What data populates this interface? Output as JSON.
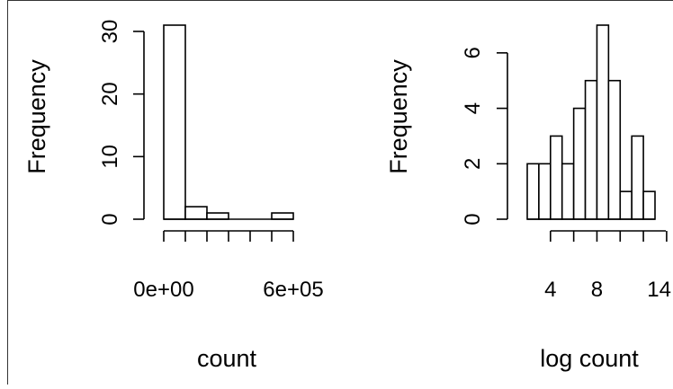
{
  "chart_data": [
    {
      "type": "bar",
      "subtype": "histogram",
      "title": "",
      "xlabel": "count",
      "ylabel": "Frequency",
      "bins": [
        {
          "x0": 0,
          "x1": 100000,
          "count": 31
        },
        {
          "x0": 100000,
          "x1": 200000,
          "count": 2
        },
        {
          "x0": 200000,
          "x1": 300000,
          "count": 1
        },
        {
          "x0": 300000,
          "x1": 400000,
          "count": 0
        },
        {
          "x0": 400000,
          "x1": 500000,
          "count": 0
        },
        {
          "x0": 500000,
          "x1": 600000,
          "count": 1
        }
      ],
      "xlim": [
        0,
        600000
      ],
      "ylim": [
        0,
        31
      ],
      "x_ticks": [
        0,
        100000,
        200000,
        300000,
        400000,
        500000,
        600000
      ],
      "x_tick_labels": [
        "0e+00",
        "",
        "",
        "",
        "",
        "",
        "6e+05"
      ],
      "y_ticks": [
        0,
        10,
        20,
        30
      ],
      "y_tick_labels": [
        "0",
        "10",
        "20",
        "30"
      ],
      "grid": false,
      "legend": "none"
    },
    {
      "type": "bar",
      "subtype": "histogram",
      "title": "",
      "xlabel": "log count",
      "ylabel": "Frequency",
      "bins": [
        {
          "x0": 2,
          "x1": 3,
          "count": 2
        },
        {
          "x0": 3,
          "x1": 4,
          "count": 2
        },
        {
          "x0": 4,
          "x1": 5,
          "count": 3
        },
        {
          "x0": 5,
          "x1": 6,
          "count": 2
        },
        {
          "x0": 6,
          "x1": 7,
          "count": 4
        },
        {
          "x0": 7,
          "x1": 8,
          "count": 5
        },
        {
          "x0": 8,
          "x1": 9,
          "count": 7
        },
        {
          "x0": 9,
          "x1": 10,
          "count": 5
        },
        {
          "x0": 10,
          "x1": 11,
          "count": 1
        },
        {
          "x0": 11,
          "x1": 12,
          "count": 3
        },
        {
          "x0": 12,
          "x1": 13,
          "count": 1
        }
      ],
      "xlim": [
        2,
        13
      ],
      "ylim": [
        0,
        7
      ],
      "x_ticks": [
        4,
        6,
        8,
        10,
        12,
        14
      ],
      "x_tick_labels": [
        "4",
        "",
        "8",
        "",
        "",
        "14"
      ],
      "y_ticks": [
        0,
        2,
        4,
        6
      ],
      "y_tick_labels": [
        "0",
        "2",
        "4",
        "6"
      ],
      "grid": false,
      "legend": "none"
    }
  ]
}
